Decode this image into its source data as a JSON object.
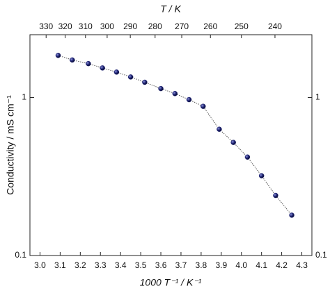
{
  "chart_data": {
    "type": "line",
    "x_label": "1000 T⁻¹ / K⁻¹",
    "x2_label": "T / K",
    "y_label": "Conductivity / mS cm⁻¹",
    "x": [
      3.09,
      3.16,
      3.24,
      3.31,
      3.38,
      3.45,
      3.52,
      3.6,
      3.67,
      3.74,
      3.81,
      3.89,
      3.96,
      4.03,
      4.1,
      4.17,
      4.25
    ],
    "series": [
      {
        "color": "#1a1f6e",
        "values": [
          1.85,
          1.73,
          1.64,
          1.54,
          1.45,
          1.35,
          1.25,
          1.14,
          1.06,
          0.97,
          0.88,
          0.63,
          0.52,
          0.42,
          0.32,
          0.24,
          0.18
        ]
      }
    ],
    "xlim": [
      2.95,
      4.35
    ],
    "xticks": [
      {
        "value": 3.0,
        "label": "3.0"
      },
      3.1,
      3.2,
      3.3,
      3.4,
      3.5,
      3.6,
      3.7,
      3.8,
      3.9,
      {
        "value": 4.0,
        "label": "4.0"
      },
      4.1,
      4.2,
      4.3
    ],
    "x2ticks": [
      330,
      320,
      310,
      300,
      290,
      280,
      270,
      260,
      250,
      240
    ],
    "ylim": [
      0.1,
      2.5
    ],
    "yticks": [
      0.1,
      1
    ],
    "log_y": true
  }
}
